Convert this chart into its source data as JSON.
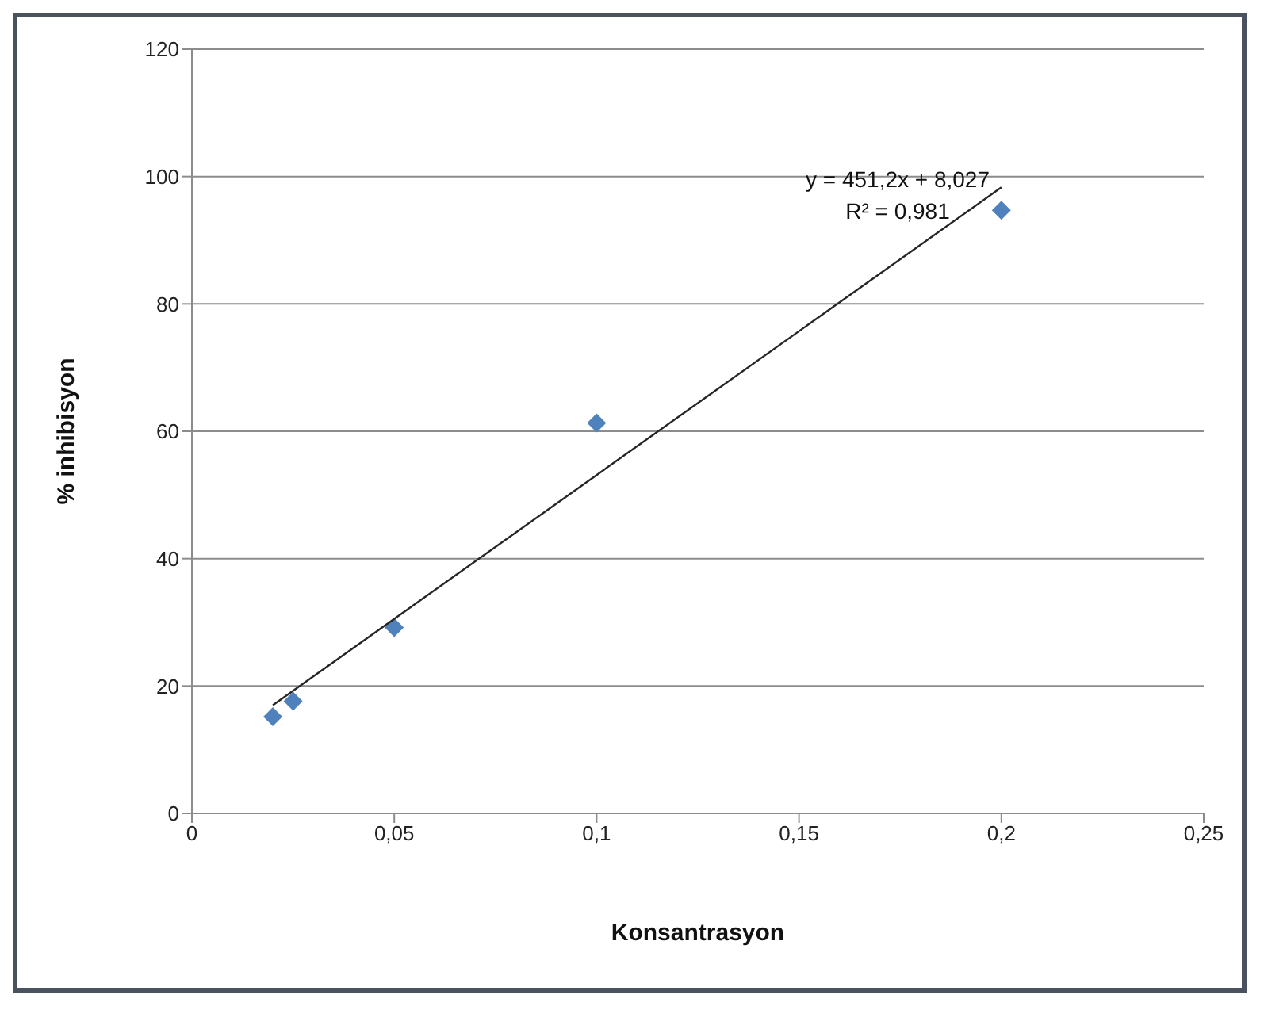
{
  "chart_data": {
    "type": "scatter",
    "xlabel": "Konsantrasyon",
    "ylabel": "% inhibisyon",
    "annotations": [
      "y = 451,2x + 8,027",
      "R² = 0,981"
    ],
    "series": [
      {
        "color": "#4f81bd",
        "marker": "diamond",
        "x": [
          0.02,
          0.025,
          0.05,
          0.1,
          0.2
        ],
        "values": [
          15.2,
          17.6,
          29.2,
          61.3,
          94.7
        ]
      },
      {
        "type": "line",
        "color": "#262626",
        "marker": "none",
        "x": [
          0.02,
          0.2
        ],
        "values": [
          17,
          98.3
        ]
      }
    ],
    "xlim": [
      0,
      0.25
    ],
    "xticks": [
      0,
      {
        "value": 0.05,
        "label": "0,05"
      },
      {
        "value": 0.1,
        "label": "0,1"
      },
      {
        "value": 0.15,
        "label": "0,15"
      },
      {
        "value": 0.2,
        "label": "0,2"
      },
      {
        "value": 0.25,
        "label": "0,25"
      }
    ],
    "ylim": [
      0,
      120
    ],
    "yticks": [
      0,
      20,
      40,
      60,
      80,
      100,
      120
    ],
    "grid": "y",
    "legend": false
  }
}
